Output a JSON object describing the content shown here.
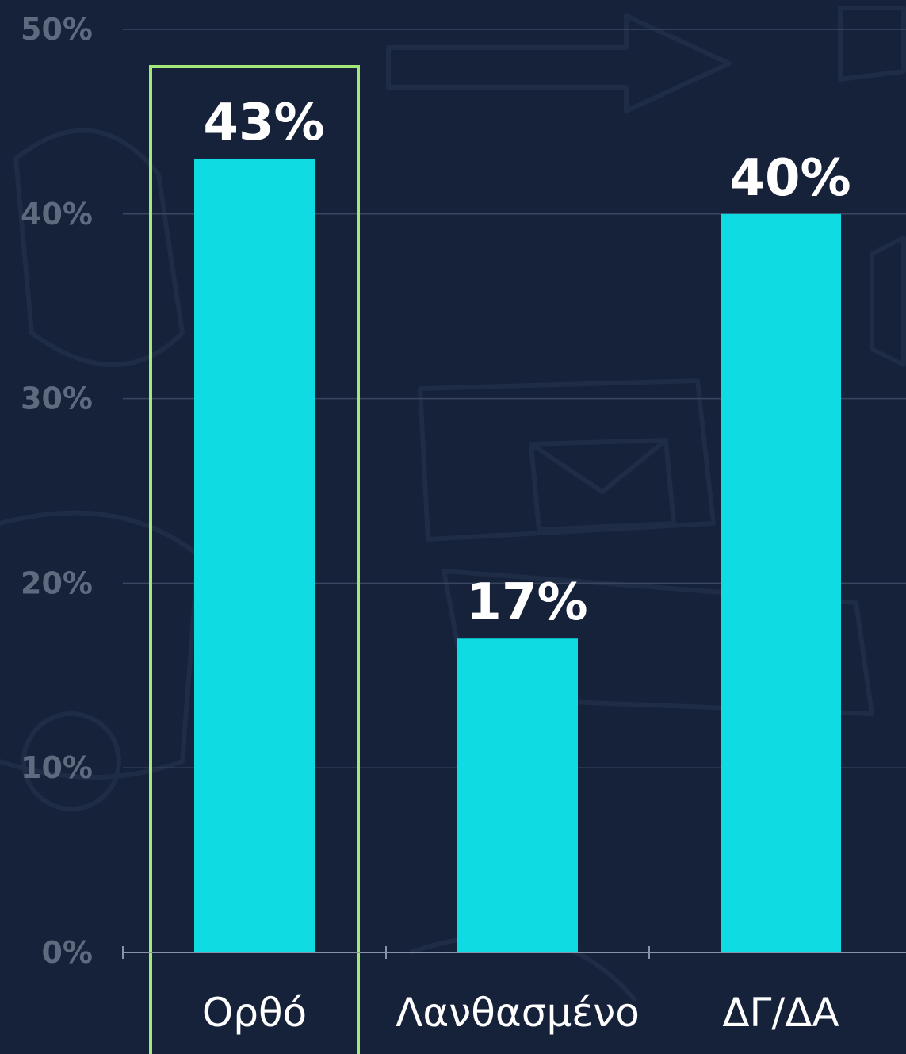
{
  "chart_data": {
    "type": "bar",
    "categories": [
      "Ορθό",
      "Λανθασμένο",
      "ΔΓ/ΔΑ"
    ],
    "values": [
      43,
      17,
      40
    ],
    "value_labels": [
      "43%",
      "17%",
      "40%"
    ],
    "yticks": [
      "0%",
      "10%",
      "20%",
      "30%",
      "40%",
      "50%"
    ],
    "ylim": [
      0,
      50
    ],
    "grid": true,
    "highlighted_category": "Ορθό",
    "colors": {
      "bar": "#0fdbe3",
      "highlight": "#a4e87a",
      "background": "#16213a",
      "data_label": "#ffffff",
      "ytick_label": "#5f6a7e"
    }
  }
}
